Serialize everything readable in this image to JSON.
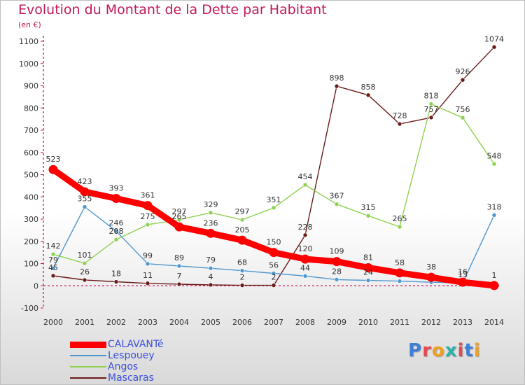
{
  "title": "Evolution du Montant de la Dette par Habitant",
  "subtitle": "(en €)",
  "logo_text": "Proxiti",
  "chart_data": {
    "type": "line",
    "x": [
      "2000",
      "2001",
      "2002",
      "2003",
      "2004",
      "2005",
      "2006",
      "2007",
      "2008",
      "2009",
      "2010",
      "2011",
      "2012",
      "2013",
      "2014"
    ],
    "ylim": [
      -100,
      1100
    ],
    "yticks": [
      -100,
      0,
      100,
      200,
      300,
      400,
      500,
      600,
      700,
      800,
      900,
      1000,
      1100
    ],
    "grid": false,
    "legend_position": "bottom-left",
    "series": [
      {
        "name": "CALAVANTé",
        "color": "#ff0000",
        "values": [
          523,
          423,
          393,
          361,
          265,
          236,
          205,
          150,
          120,
          109,
          81,
          58,
          38,
          16,
          1
        ]
      },
      {
        "name": "Lespouey",
        "color": "#4f97cf",
        "values": [
          79,
          355,
          246,
          99,
          89,
          79,
          68,
          56,
          44,
          28,
          24,
          21,
          16,
          13,
          318
        ]
      },
      {
        "name": "Angos",
        "color": "#8fd14f",
        "values": [
          142,
          101,
          208,
          275,
          297,
          329,
          297,
          351,
          454,
          367,
          315,
          265,
          818,
          756,
          548
        ]
      },
      {
        "name": "Mascaras",
        "color": "#6b1a1a",
        "values": [
          45,
          26,
          18,
          11,
          7,
          4,
          2,
          2,
          228,
          898,
          858,
          728,
          757,
          926,
          1074
        ]
      }
    ],
    "data_labels": [
      [
        "523",
        "423",
        "393",
        "361",
        "265",
        "236",
        "205",
        "150",
        "120",
        "109",
        "81",
        "58",
        "38",
        "16",
        "1"
      ],
      [
        "79",
        "355",
        "246",
        "99",
        "89",
        "79",
        "68",
        "56",
        "44",
        "28",
        "24",
        "",
        "",
        "13",
        "318"
      ],
      [
        "142",
        "101",
        "208",
        "275",
        "297",
        "329",
        "297",
        "351",
        "454",
        "367",
        "315",
        "265",
        "818",
        "756",
        "548"
      ],
      [
        "45",
        "26",
        "18",
        "11",
        "7",
        "4",
        "2",
        "2",
        "228",
        "898",
        "858",
        "728",
        "757",
        "926",
        "1074"
      ]
    ]
  }
}
